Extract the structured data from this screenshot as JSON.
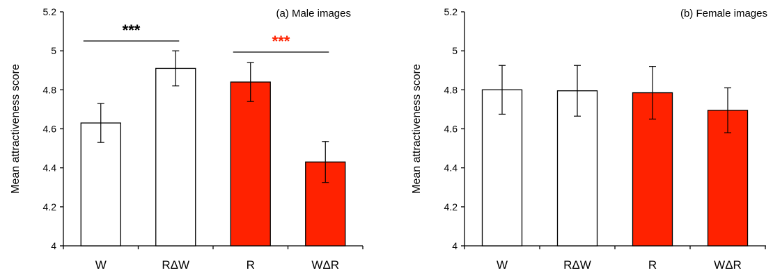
{
  "chart_data": [
    {
      "type": "bar",
      "panel_title": "(a) Male images",
      "ylabel": "Mean attractiveness score",
      "xlabel": "",
      "ylim": [
        4,
        5.2
      ],
      "yticks": [
        "4",
        "4.2",
        "4.4",
        "4.6",
        "4.8",
        "5",
        "5.2"
      ],
      "categories": [
        "W",
        "RΔW",
        "R",
        "WΔR"
      ],
      "values": [
        4.63,
        4.91,
        4.84,
        4.43
      ],
      "error": [
        0.1,
        0.09,
        0.1,
        0.105
      ],
      "bar_colors": [
        "#ffffff",
        "#ffffff",
        "#ff2200",
        "#ff2200"
      ],
      "significance": [
        {
          "from": 0,
          "to": 1,
          "label": "***",
          "color": "#000000"
        },
        {
          "from": 2,
          "to": 3,
          "label": "***",
          "color": "#ff2200"
        }
      ]
    },
    {
      "type": "bar",
      "panel_title": "(b) Female images",
      "ylabel": "Mean attractiveness score",
      "xlabel": "",
      "ylim": [
        4,
        5.2
      ],
      "yticks": [
        "4",
        "4.2",
        "4.4",
        "4.6",
        "4.8",
        "5",
        "5.2"
      ],
      "categories": [
        "W",
        "RΔW",
        "R",
        "WΔR"
      ],
      "values": [
        4.8,
        4.795,
        4.785,
        4.695
      ],
      "error": [
        0.125,
        0.13,
        0.135,
        0.115
      ],
      "bar_colors": [
        "#ffffff",
        "#ffffff",
        "#ff2200",
        "#ff2200"
      ],
      "significance": []
    }
  ]
}
